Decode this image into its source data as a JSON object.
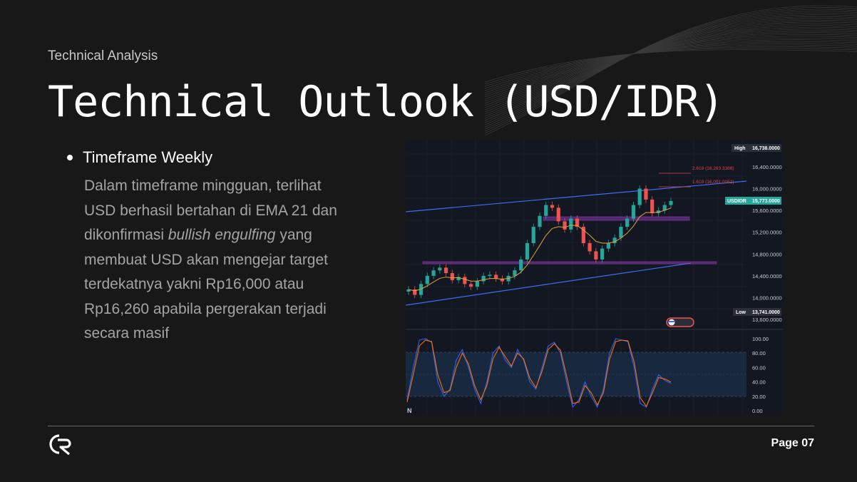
{
  "slide": {
    "section_label": "Technical Analysis",
    "title": "Technical Outlook (USD/IDR)",
    "bullet_title": "Timeframe Weekly",
    "body_part1": "Dalam timeframe mingguan, terlihat USD berhasil bertahan di EMA 21 dan dikonfirmasi ",
    "body_italic": "bullish engulfing",
    "body_part2": " yang membuat USD akan mengejar target terdekatnya yakni Rp16,000 atau Rp16,260 apabila pergerakan terjadi secara masif",
    "page_number": "Page 07"
  },
  "chart_data": [
    {
      "type": "candlestick",
      "symbol": "USDIDR",
      "price_axis_labels": [
        "16,400.0000",
        "16,000.0000",
        "15,600.0000",
        "15,200.0000",
        "14,800.0000",
        "14,400.0000",
        "14,000.0000",
        "13,600.0000"
      ],
      "tags": {
        "high_label": "High",
        "high_value": "16,738.0000",
        "symbol_label": "USDIDR",
        "last_value": "15,773.0000",
        "low_label": "Low",
        "low_value": "13,741.0000"
      },
      "fib_levels": [
        "2.618 (16,263.3386)",
        "1.618 (16,001.0052)"
      ],
      "colors": {
        "up": "#26a69a",
        "down": "#ef5350",
        "ema": "#e3a33a",
        "channel": "#3d6df2",
        "zone": "#c54ae6"
      },
      "price_series_approx": [
        14150,
        14050,
        14250,
        14400,
        14500,
        14550,
        14450,
        14320,
        14380,
        14250,
        14200,
        14300,
        14400,
        14420,
        14350,
        14300,
        14400,
        14500,
        14700,
        15000,
        15300,
        15500,
        15700,
        15650,
        15400,
        15250,
        15450,
        15300,
        15000,
        14850,
        14700,
        14900,
        15000,
        15100,
        15300,
        15450,
        15700,
        16000,
        15800,
        15550,
        15600,
        15700,
        15773
      ]
    },
    {
      "type": "line",
      "indicator": "oscillator",
      "axis_labels": [
        "100.00",
        "80.00",
        "60.00",
        "40.00",
        "20.00",
        "0.00"
      ],
      "ylim": [
        0,
        100
      ],
      "bands": [
        20,
        80
      ],
      "series": [
        {
          "color": "#2962ff",
          "values": [
            15,
            60,
            98,
            100,
            95,
            40,
            20,
            30,
            70,
            85,
            60,
            30,
            10,
            40,
            80,
            90,
            70,
            60,
            85,
            70,
            40,
            30,
            60,
            90,
            95,
            80,
            40,
            5,
            15,
            40,
            20,
            5,
            30,
            80,
            100,
            98,
            96,
            60,
            10,
            5,
            30,
            50,
            42,
            38
          ]
        },
        {
          "color": "#ff6d00",
          "values": [
            12,
            50,
            90,
            98,
            96,
            50,
            25,
            28,
            60,
            80,
            65,
            35,
            15,
            35,
            72,
            88,
            75,
            62,
            80,
            72,
            45,
            32,
            55,
            85,
            93,
            84,
            48,
            10,
            12,
            35,
            25,
            8,
            25,
            72,
            96,
            98,
            97,
            68,
            18,
            6,
            25,
            46,
            44,
            40
          ]
        }
      ],
      "bottom_label": "N"
    }
  ]
}
